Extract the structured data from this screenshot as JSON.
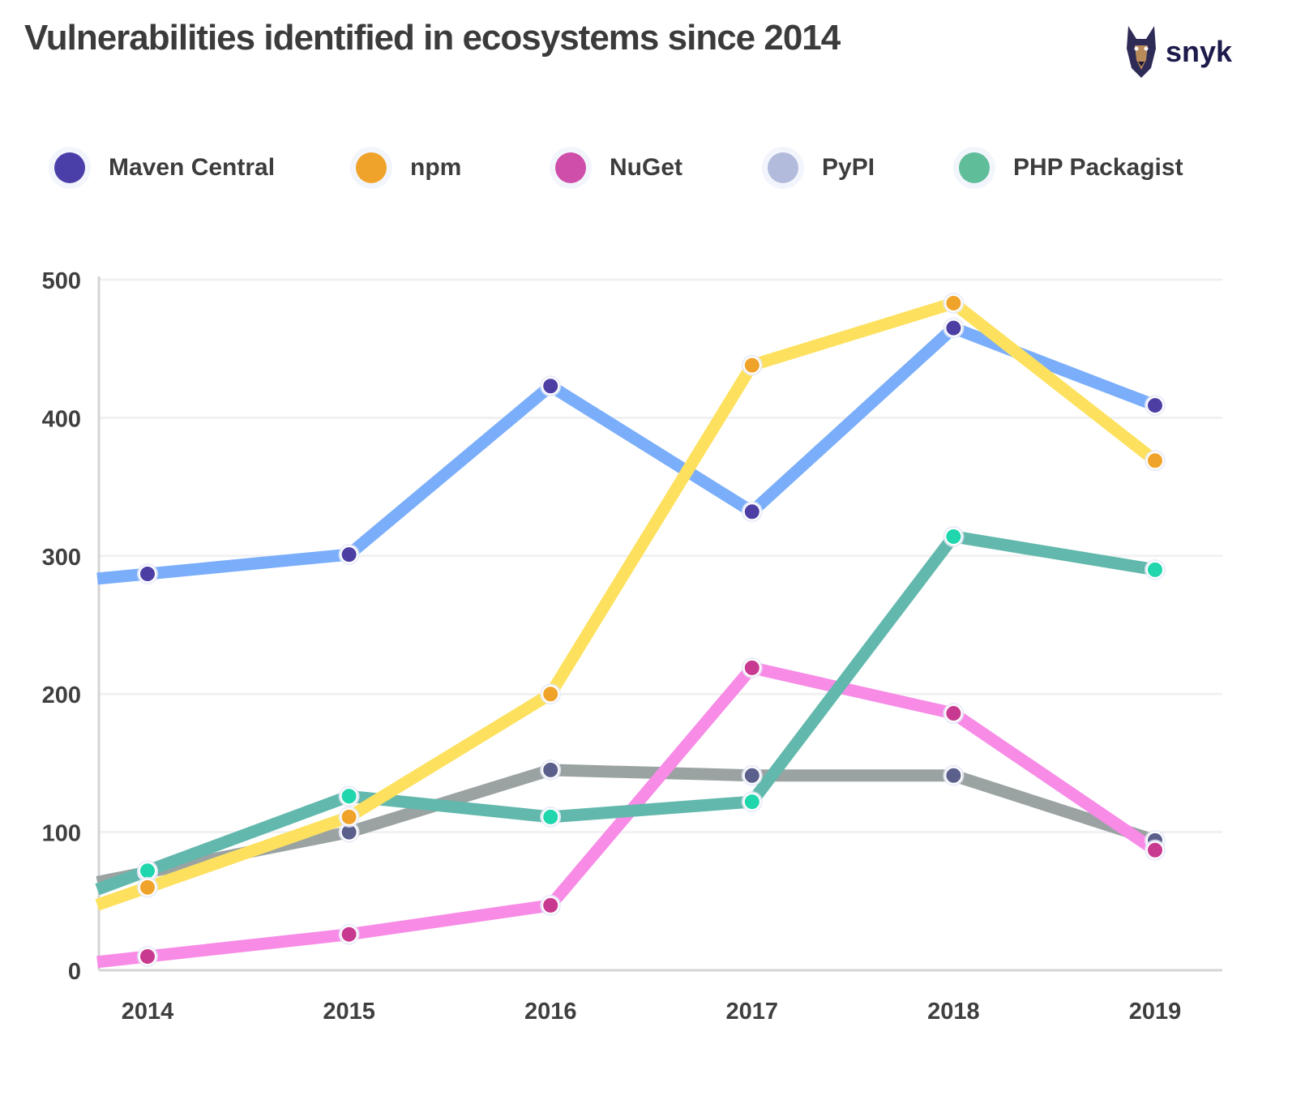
{
  "header": {
    "title": "Vulnerabilities identified in ecosystems since 2014",
    "brand": "snyk"
  },
  "colors": {
    "Maven Central": "#7baefa",
    "npm": "#fde15e",
    "NuGet": "#f78be6",
    "PyPI": "#9aa2a2",
    "PHP Packagist": "#62b8ad"
  },
  "chart_data": {
    "type": "line",
    "title": "Vulnerabilities identified in ecosystems since 2014",
    "xlabel": "",
    "ylabel": "",
    "x": [
      "2014",
      "2015",
      "2016",
      "2017",
      "2018",
      "2019"
    ],
    "ylim": [
      0,
      500
    ],
    "yticks": [
      0,
      100,
      200,
      300,
      400,
      500
    ],
    "grid": true,
    "legend": "top",
    "series": [
      {
        "name": "Maven Central",
        "color": "#7baefa",
        "legend_color": "#4a3fa8",
        "marker_color": "#4c3ea3",
        "values": [
          287,
          301,
          423,
          332,
          465,
          409
        ]
      },
      {
        "name": "npm",
        "color": "#fde15e",
        "legend_color": "#f0a32b",
        "marker_color": "#f0a32b",
        "values": [
          60,
          111,
          200,
          438,
          483,
          369
        ]
      },
      {
        "name": "NuGet",
        "color": "#f78be6",
        "legend_color": "#cf4ea9",
        "marker_color": "#c83a8f",
        "values": [
          10,
          26,
          47,
          219,
          186,
          87
        ]
      },
      {
        "name": "PyPI",
        "color": "#9aa2a2",
        "legend_color": "#b3bbdc",
        "marker_color": "#5a5f8c",
        "values": [
          71,
          100,
          145,
          141,
          141,
          94
        ]
      },
      {
        "name": "PHP Packagist",
        "color": "#62b8ad",
        "legend_color": "#5fbd9a",
        "marker_color": "#1fd6ad",
        "values": [
          72,
          126,
          111,
          122,
          314,
          290
        ]
      }
    ]
  }
}
